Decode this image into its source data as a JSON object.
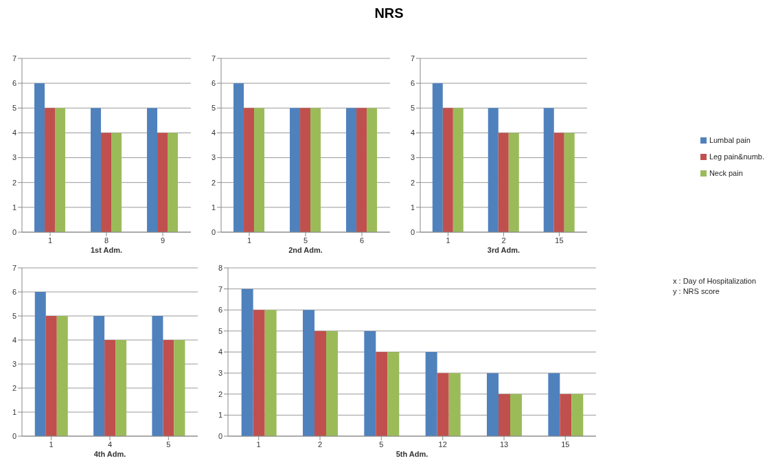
{
  "chart_data": [
    {
      "type": "bar",
      "xlabel": "1st Adm.",
      "categories": [
        "1",
        "8",
        "9"
      ],
      "ylim": [
        0,
        7
      ],
      "yticks": [
        0,
        1,
        2,
        3,
        4,
        5,
        6,
        7
      ],
      "grid": "y",
      "series": [
        {
          "color": "#4f81bd",
          "values": [
            6,
            5,
            5
          ]
        },
        {
          "color": "#c0504d",
          "values": [
            5,
            4,
            4
          ]
        },
        {
          "color": "#9bbb59",
          "values": [
            5,
            4,
            4
          ]
        }
      ]
    },
    {
      "type": "bar",
      "title": "NRS",
      "xlabel": "2nd Adm.",
      "categories": [
        "1",
        "5",
        "6"
      ],
      "ylim": [
        0,
        7
      ],
      "yticks": [
        0,
        1,
        2,
        3,
        4,
        5,
        6,
        7
      ],
      "grid": "y",
      "series": [
        {
          "color": "#4f81bd",
          "values": [
            6,
            5,
            5
          ]
        },
        {
          "color": "#c0504d",
          "values": [
            5,
            5,
            5
          ]
        },
        {
          "color": "#9bbb59",
          "values": [
            5,
            5,
            5
          ]
        }
      ]
    },
    {
      "type": "bar",
      "xlabel": "3rd Adm.",
      "categories": [
        "1",
        "2",
        "15"
      ],
      "ylim": [
        0,
        7
      ],
      "yticks": [
        0,
        1,
        2,
        3,
        4,
        5,
        6,
        7
      ],
      "grid": "y",
      "legend": "right",
      "annotations": [
        "x : Day of Hospitalization",
        "y : NRS score"
      ],
      "series": [
        {
          "name": "Lumbal pain",
          "color": "#4f81bd",
          "values": [
            6,
            5,
            5
          ]
        },
        {
          "name": "Leg pain&numb.",
          "color": "#c0504d",
          "values": [
            5,
            4,
            4
          ]
        },
        {
          "name": "Neck pain",
          "color": "#9bbb59",
          "values": [
            5,
            4,
            4
          ]
        }
      ]
    },
    {
      "type": "bar",
      "xlabel": "4th Adm.",
      "categories": [
        "1",
        "4",
        "5"
      ],
      "ylim": [
        0,
        7
      ],
      "yticks": [
        0,
        1,
        2,
        3,
        4,
        5,
        6,
        7
      ],
      "grid": "y",
      "series": [
        {
          "color": "#4f81bd",
          "values": [
            6,
            5,
            5
          ]
        },
        {
          "color": "#c0504d",
          "values": [
            5,
            4,
            4
          ]
        },
        {
          "color": "#9bbb59",
          "values": [
            5,
            4,
            4
          ]
        }
      ]
    },
    {
      "type": "bar",
      "xlabel": "5th Adm.",
      "categories": [
        "1",
        "2",
        "5",
        "12",
        "13",
        "15"
      ],
      "ylim": [
        0,
        8
      ],
      "yticks": [
        0,
        1,
        2,
        3,
        4,
        5,
        6,
        7,
        8
      ],
      "grid": "y",
      "series": [
        {
          "color": "#4f81bd",
          "values": [
            7,
            6,
            5,
            4,
            3,
            3
          ]
        },
        {
          "color": "#c0504d",
          "values": [
            6,
            5,
            4,
            3,
            2,
            2
          ]
        },
        {
          "color": "#9bbb59",
          "values": [
            6,
            5,
            4,
            3,
            2,
            2
          ]
        }
      ]
    }
  ]
}
